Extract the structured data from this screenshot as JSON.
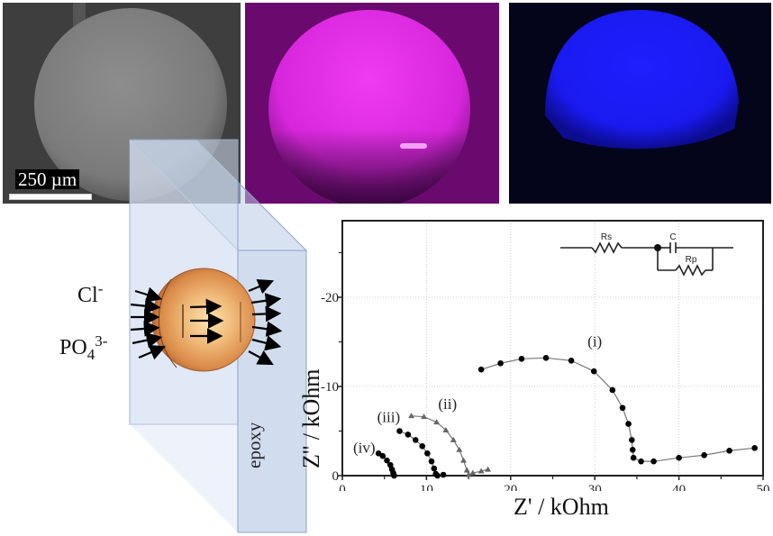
{
  "figure": {
    "panels": [
      {
        "id": "sem",
        "description": "SEM image of sphere",
        "color": "#3e3e3e"
      },
      {
        "id": "mag",
        "description": "EDX map magenta",
        "color": "#e020e8"
      },
      {
        "id": "blu",
        "description": "EDX map blue",
        "color": "#1a1aff"
      }
    ],
    "scale_bar": "250 µm",
    "schematic": {
      "ions": [
        "Cl",
        "PO4"
      ],
      "ion_cl": {
        "base": "Cl",
        "charge": "-"
      },
      "ion_po4": {
        "base": "PO",
        "sub": "4",
        "charge": "3-"
      },
      "slab_label": "epoxy",
      "colors": {
        "slab": "#c9d7ec",
        "sphere_outer": "#d89050",
        "sphere_inner": "#fbe0a8"
      }
    },
    "circuit": {
      "labels": [
        "Rs",
        "C",
        "Rp"
      ]
    }
  },
  "chart_data": {
    "type": "scatter",
    "title": "",
    "xlabel": "Z' / kOhm",
    "ylabel": "Z'' / kOhm",
    "xlim": [
      0,
      50
    ],
    "ylim": [
      0,
      -28.5
    ],
    "x_ticks": [
      0,
      10,
      20,
      30,
      40,
      50
    ],
    "y_ticks": [
      0,
      -10,
      -20
    ],
    "grid": true,
    "legend": "none (inline annotations)",
    "inset": "equivalent circuit Rs + (C || Rp)",
    "series": [
      {
        "name": "(i)",
        "marker": "circle",
        "color": "#000000",
        "x": [
          16.5,
          18.8,
          21.3,
          24.2,
          27.2,
          29.9,
          32.1,
          33.3,
          34.0,
          34.4,
          34.5,
          34.6,
          35.5,
          37,
          40,
          43,
          46,
          49
        ],
        "y": [
          -11.9,
          -12.6,
          -13.1,
          -13.2,
          -12.9,
          -11.7,
          -9.6,
          -7.6,
          -5.8,
          -4.0,
          -2.9,
          -2.0,
          -1.6,
          -1.6,
          -2.0,
          -2.3,
          -2.8,
          -3.1
        ]
      },
      {
        "name": "(ii)",
        "marker": "triangle",
        "color": "#666666",
        "x": [
          8.2,
          9.7,
          11.2,
          12.3,
          13.2,
          13.9,
          14.4,
          14.8,
          15.0,
          15.5,
          16.5,
          17.3
        ],
        "y": [
          -6.7,
          -6.6,
          -6.0,
          -5.1,
          -4.0,
          -2.9,
          -1.7,
          -0.6,
          -0.1,
          -0.3,
          -0.5,
          -0.7
        ]
      },
      {
        "name": "(iii)",
        "marker": "circle",
        "color": "#000000",
        "x": [
          6.8,
          7.8,
          8.7,
          9.5,
          10.1,
          10.6,
          10.9,
          11.1,
          11.3,
          12.0
        ],
        "y": [
          -5.0,
          -4.6,
          -4.0,
          -3.3,
          -2.5,
          -1.6,
          -0.8,
          -0.2,
          0.0,
          -0.1
        ]
      },
      {
        "name": "(iv)",
        "marker": "circle",
        "color": "#000000",
        "x": [
          4.3,
          4.8,
          5.3,
          5.7,
          5.9,
          6.05,
          6.1,
          6.15
        ],
        "y": [
          -2.5,
          -2.2,
          -1.7,
          -1.2,
          -0.7,
          -0.3,
          -0.1,
          0.0
        ]
      }
    ],
    "annotations": [
      {
        "text": "(i)",
        "x": 30,
        "y": -14.5
      },
      {
        "text": "(ii)",
        "x": 12.5,
        "y": -7.5
      },
      {
        "text": "(iii)",
        "x": 5.5,
        "y": -6.0
      },
      {
        "text": "(iv)",
        "x": 2.6,
        "y": -2.6
      }
    ]
  }
}
